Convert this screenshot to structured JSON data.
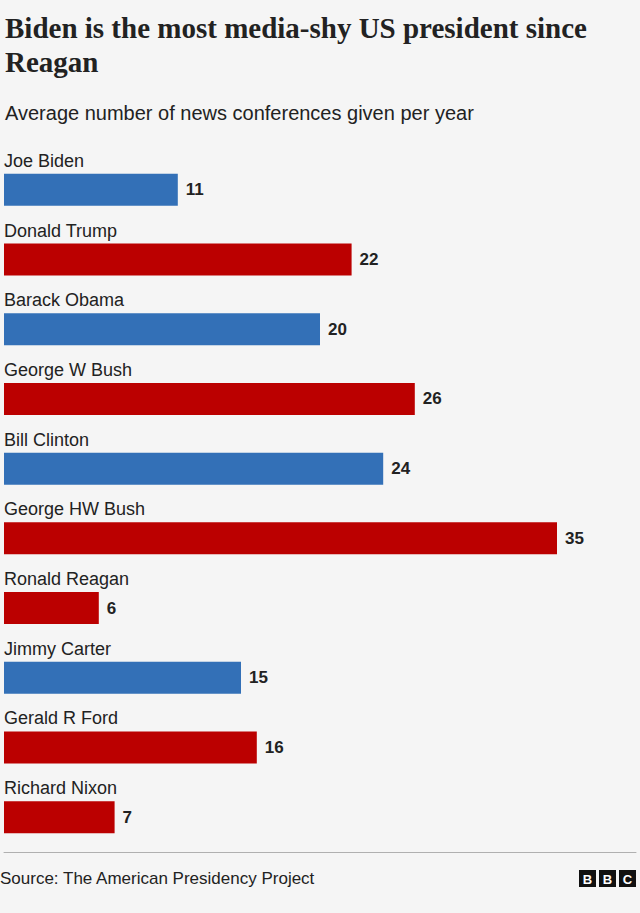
{
  "chart_data": {
    "type": "bar",
    "title": "Biden is the most media-shy US president since Reagan",
    "subtitle": "Average number of news conferences given per year",
    "categories": [
      "Joe Biden",
      "Donald Trump",
      "Barack Obama",
      "George W Bush",
      "Bill Clinton",
      "George HW Bush",
      "Ronald Reagan",
      "Jimmy Carter",
      "Gerald R Ford",
      "Richard Nixon"
    ],
    "values": [
      11,
      22,
      20,
      26,
      24,
      35,
      6,
      15,
      16,
      7
    ],
    "colors": [
      "#3370b7",
      "#bb0000",
      "#3370b7",
      "#bb0000",
      "#3370b7",
      "#bb0000",
      "#bb0000",
      "#3370b7",
      "#bb0000",
      "#bb0000"
    ],
    "orientation": "horizontal",
    "data_labels": true,
    "tick_labels": "y",
    "xlim": [
      0,
      40
    ],
    "source": "Source: The American Presidency Project",
    "logo": "BBC"
  }
}
